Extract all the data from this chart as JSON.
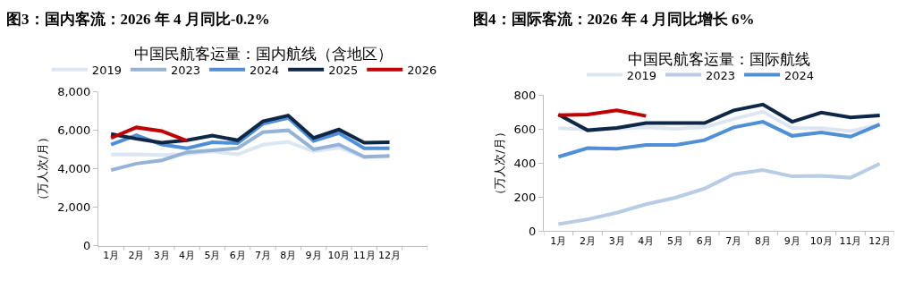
{
  "chart_data": [
    {
      "type": "line",
      "title": "图3：国内客流：2026 年 4 月同比-0.2%",
      "subtitle": "中国民航客运量：国内航线（含地区）",
      "ylabel": "（万人次/月）",
      "legend": "top",
      "marker": "none",
      "line_style": "solid",
      "categories": [
        "1月",
        "2月",
        "3月",
        "4月",
        "5月",
        "6月",
        "7月",
        "8月",
        "9月",
        "10月",
        "11月",
        "12月",
        null
      ],
      "ylim": [
        0,
        8000
      ],
      "yticks": [
        {
          "value": 0,
          "label": "0"
        },
        {
          "value": 2000,
          "label": "2,000"
        },
        {
          "value": 4000,
          "label": "4,000"
        },
        {
          "value": 6000,
          "label": "6,000"
        },
        {
          "value": 8000,
          "label": "8,000"
        }
      ],
      "series": [
        {
          "name": "2019",
          "color": "#dce6f2",
          "values": [
            4740,
            4750,
            4720,
            4780,
            4900,
            4750,
            5250,
            5400,
            4900,
            5100,
            4600,
            4650,
            null
          ]
        },
        {
          "name": "2023",
          "color": "#95b3d7",
          "values": [
            3930,
            4270,
            4440,
            4860,
            4960,
            5070,
            5900,
            6000,
            5010,
            5260,
            4620,
            4670,
            null
          ]
        },
        {
          "name": "2024",
          "color": "#4f8fd8",
          "values": [
            5260,
            5750,
            5260,
            5070,
            5380,
            5330,
            6340,
            6640,
            5450,
            5850,
            5070,
            5070,
            null
          ]
        },
        {
          "name": "2025",
          "color": "#0f2746",
          "values": [
            5810,
            5560,
            5360,
            5480,
            5730,
            5480,
            6470,
            6770,
            5600,
            6040,
            5360,
            5380,
            null
          ]
        },
        {
          "name": "2026",
          "color": "#c00000",
          "values": [
            5600,
            6150,
            5960,
            5450,
            null,
            null,
            null,
            null,
            null,
            null,
            null,
            null,
            null
          ]
        }
      ]
    },
    {
      "type": "line",
      "title": "图4：国际客流：2026 年 4 月同比增长 6%",
      "subtitle": "中国民航客运量：国际航线",
      "ylabel": "（万人次/月）",
      "legend": "top",
      "marker": "none",
      "line_style": "solid",
      "categories": [
        "1月",
        "2月",
        "3月",
        "4月",
        "5月",
        "6月",
        "7月",
        "8月",
        "9月",
        "10月",
        "11月",
        "12月"
      ],
      "ylim": [
        0,
        800
      ],
      "yticks": [
        0,
        200,
        400,
        600,
        800
      ],
      "series": [
        {
          "name": "2019",
          "color": "#dce6f2",
          "values": [
            606,
            599,
            603,
            611,
            603,
            611,
            661,
            703,
            606,
            606,
            589,
            628
          ]
        },
        {
          "name": "2023",
          "color": "#b8cce4",
          "values": [
            42,
            70,
            109,
            159,
            197,
            251,
            335,
            360,
            323,
            326,
            315,
            397
          ]
        },
        {
          "name": "2024",
          "color": "#4f8fd8",
          "values": [
            438,
            489,
            485,
            507,
            507,
            536,
            611,
            644,
            561,
            581,
            556,
            628
          ]
        },
        {
          "color": "#0f2746",
          "values": [
            686,
            594,
            608,
            636,
            636,
            636,
            711,
            745,
            644,
            698,
            669,
            681
          ]
        },
        {
          "color": "#c00000",
          "values": [
            683,
            686,
            711,
            678,
            null,
            null,
            null,
            null,
            null,
            null,
            null,
            null
          ]
        }
      ]
    }
  ]
}
